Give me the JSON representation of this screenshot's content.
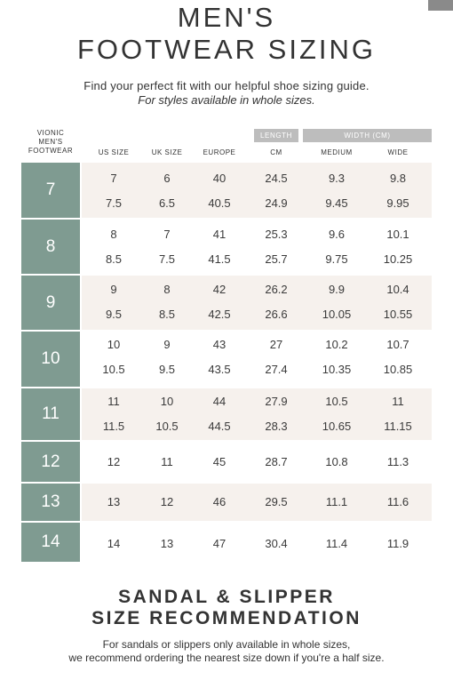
{
  "header": {
    "title_line1": "MEN'S",
    "title_line2": "FOOTWEAR SIZING",
    "subtitle": "Find your perfect fit with our helpful shoe sizing guide.",
    "subtitle_italic": "For styles available in whole sizes."
  },
  "table": {
    "brand_col_label": [
      "VIONIC",
      "MEN'S",
      "FOOTWEAR"
    ],
    "group_headers": {
      "length": "LENGTH",
      "width": "WIDTH (CM)"
    },
    "columns": [
      "US SIZE",
      "UK SIZE",
      "EUROPE",
      "CM",
      "MEDIUM",
      "WIDE"
    ],
    "groups": [
      {
        "size": "7",
        "rows": [
          [
            "7",
            "6",
            "40",
            "24.5",
            "9.3",
            "9.8"
          ],
          [
            "7.5",
            "6.5",
            "40.5",
            "24.9",
            "9.45",
            "9.95"
          ]
        ]
      },
      {
        "size": "8",
        "rows": [
          [
            "8",
            "7",
            "41",
            "25.3",
            "9.6",
            "10.1"
          ],
          [
            "8.5",
            "7.5",
            "41.5",
            "25.7",
            "9.75",
            "10.25"
          ]
        ]
      },
      {
        "size": "9",
        "rows": [
          [
            "9",
            "8",
            "42",
            "26.2",
            "9.9",
            "10.4"
          ],
          [
            "9.5",
            "8.5",
            "42.5",
            "26.6",
            "10.05",
            "10.55"
          ]
        ]
      },
      {
        "size": "10",
        "rows": [
          [
            "10",
            "9",
            "43",
            "27",
            "10.2",
            "10.7"
          ],
          [
            "10.5",
            "9.5",
            "43.5",
            "27.4",
            "10.35",
            "10.85"
          ]
        ]
      },
      {
        "size": "11",
        "rows": [
          [
            "11",
            "10",
            "44",
            "27.9",
            "10.5",
            "11"
          ],
          [
            "11.5",
            "10.5",
            "44.5",
            "28.3",
            "10.65",
            "11.15"
          ]
        ]
      },
      {
        "size": "12",
        "rows": [
          [
            "12",
            "11",
            "45",
            "28.7",
            "10.8",
            "11.3"
          ]
        ]
      },
      {
        "size": "13",
        "rows": [
          [
            "13",
            "12",
            "46",
            "29.5",
            "11.1",
            "11.6"
          ]
        ]
      },
      {
        "size": "14",
        "rows": [
          [
            "14",
            "13",
            "47",
            "30.4",
            "11.4",
            "11.9"
          ]
        ]
      }
    ]
  },
  "footer": {
    "title_line1": "SANDAL & SLIPPER",
    "title_line2": "SIZE RECOMMENDATION",
    "note_line1": "For sandals or slippers only available in whole sizes,",
    "note_line2": "we recommend ordering the nearest size down if you're a half size."
  },
  "colors": {
    "size_block": "#7f9b91",
    "row_shade": "#f6f1ed",
    "group_header": "#bdbdbd"
  }
}
